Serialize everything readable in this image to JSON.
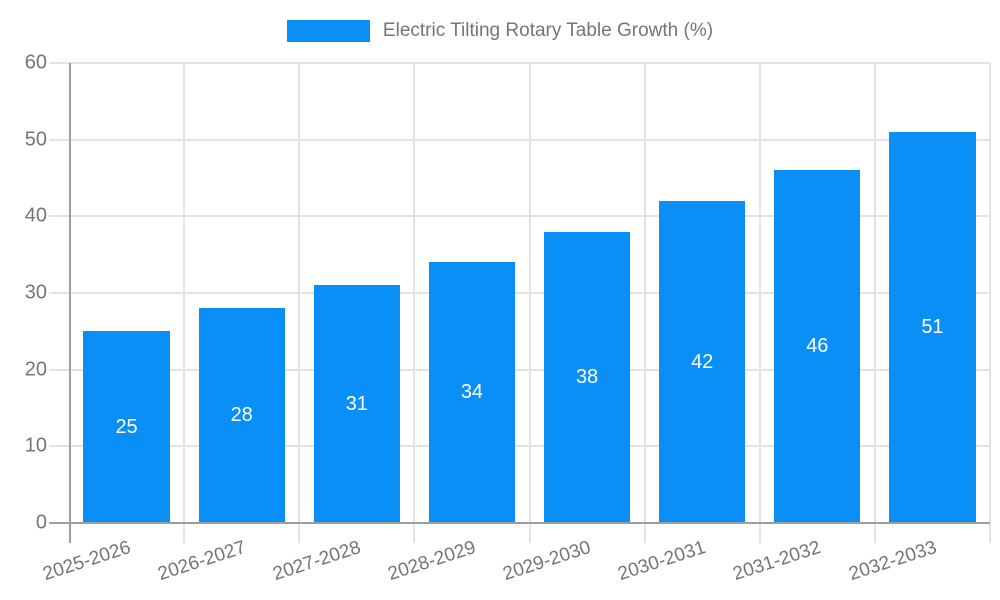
{
  "legend": {
    "label": "Electric Tilting Rotary Table Growth (%)"
  },
  "colors": {
    "bar": "#0a8ff7",
    "grid": "#e3e3e3",
    "axis": "#9e9e9e",
    "tick_text": "#757575",
    "bar_label_text": "#ffffff",
    "background": "#ffffff"
  },
  "chart_data": {
    "type": "bar",
    "title": "Electric Tilting Rotary Table Growth (%)",
    "categories": [
      "2025-2026",
      "2026-2027",
      "2027-2028",
      "2028-2029",
      "2029-2030",
      "2030-2031",
      "2031-2032",
      "2032-2033"
    ],
    "values": [
      25,
      28,
      31,
      34,
      38,
      42,
      46,
      51
    ],
    "series": [
      {
        "name": "Electric Tilting Rotary Table Growth (%)",
        "values": [
          25,
          28,
          31,
          34,
          38,
          42,
          46,
          51
        ]
      }
    ],
    "xlabel": "",
    "ylabel": "",
    "ylim": [
      0,
      60
    ],
    "yticks": [
      0,
      10,
      20,
      30,
      40,
      50,
      60
    ],
    "grid": true,
    "legend_position": "top",
    "bar_labels_shown": true,
    "bar_width_fraction": 0.75,
    "x_label_rotation_deg": -18
  }
}
